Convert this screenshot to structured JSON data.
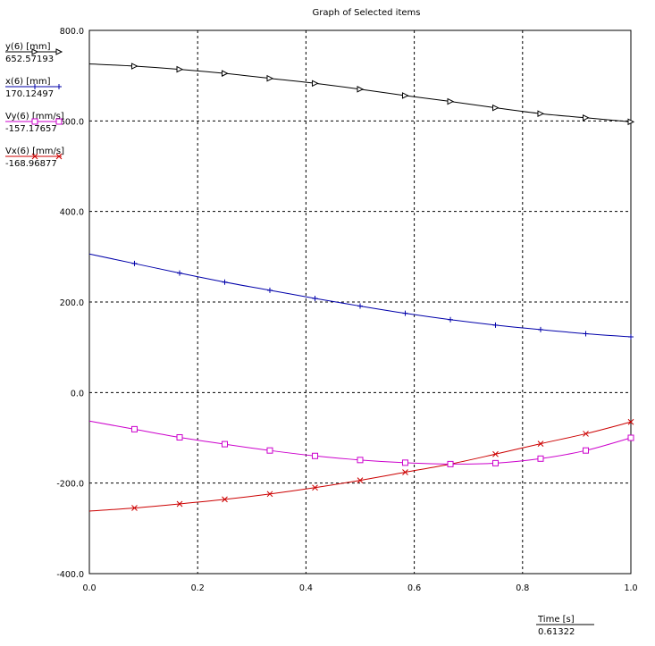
{
  "chart_data": {
    "type": "line",
    "title": "Graph of Selected items",
    "xlim": [
      0.0,
      1.0
    ],
    "ylim": [
      -400.0,
      800.0
    ],
    "x_ticks": [
      "0.0",
      "0.2",
      "0.4",
      "0.6",
      "0.8",
      "1.0"
    ],
    "y_ticks": [
      "-400.0",
      "-200.0",
      "0.0",
      "200.0",
      "400.0",
      "600.0",
      "800.0"
    ],
    "grid": true,
    "x_axis": {
      "name": "Time [s]",
      "value": "0.61322"
    },
    "series": [
      {
        "name": "Vx(6) [mm/s]",
        "value": "-168.96877",
        "color": "#cc0000",
        "marker": "x",
        "x": [
          0.0,
          0.0833,
          0.1667,
          0.25,
          0.3333,
          0.4167,
          0.5,
          0.5833,
          0.6667,
          0.75,
          0.8333,
          0.9167,
          1.0
        ],
        "y": [
          -262,
          -255,
          -246,
          -236,
          -224,
          -210,
          -194,
          -176,
          -158,
          -136,
          -113,
          -91,
          -65
        ]
      },
      {
        "name": "Vy(6) [mm/s]",
        "value": "-157.17657",
        "color": "#cc00cc",
        "marker": "square",
        "x": [
          0.0,
          0.0833,
          0.1667,
          0.25,
          0.3333,
          0.4167,
          0.5,
          0.5833,
          0.6667,
          0.75,
          0.8333,
          0.9167,
          1.0
        ],
        "y": [
          -63,
          -81,
          -99,
          -114,
          -128,
          -140,
          -149,
          -155,
          -158,
          -156,
          -146,
          -128,
          -100
        ]
      },
      {
        "name": "x(6) [mm]",
        "value": "170.12497",
        "color": "#0000aa",
        "marker": "plus",
        "x": [
          0.0,
          0.0833,
          0.1667,
          0.25,
          0.3333,
          0.4167,
          0.5,
          0.5833,
          0.6667,
          0.75,
          0.8333,
          0.9167,
          1.0
        ],
        "y": [
          306,
          285,
          264,
          244,
          226,
          208,
          191,
          175,
          161,
          149,
          139,
          130,
          123
        ]
      },
      {
        "name": "y(6) [mm]",
        "value": "652.57193",
        "color": "#000000",
        "marker": "triangle-right",
        "x": [
          0.0,
          0.0833,
          0.1667,
          0.25,
          0.3333,
          0.4167,
          0.5,
          0.5833,
          0.6667,
          0.75,
          0.8333,
          0.9167,
          1.0
        ],
        "y": [
          726,
          721,
          714,
          705,
          694,
          683,
          670,
          656,
          643,
          629,
          616,
          607,
          598
        ]
      }
    ]
  }
}
